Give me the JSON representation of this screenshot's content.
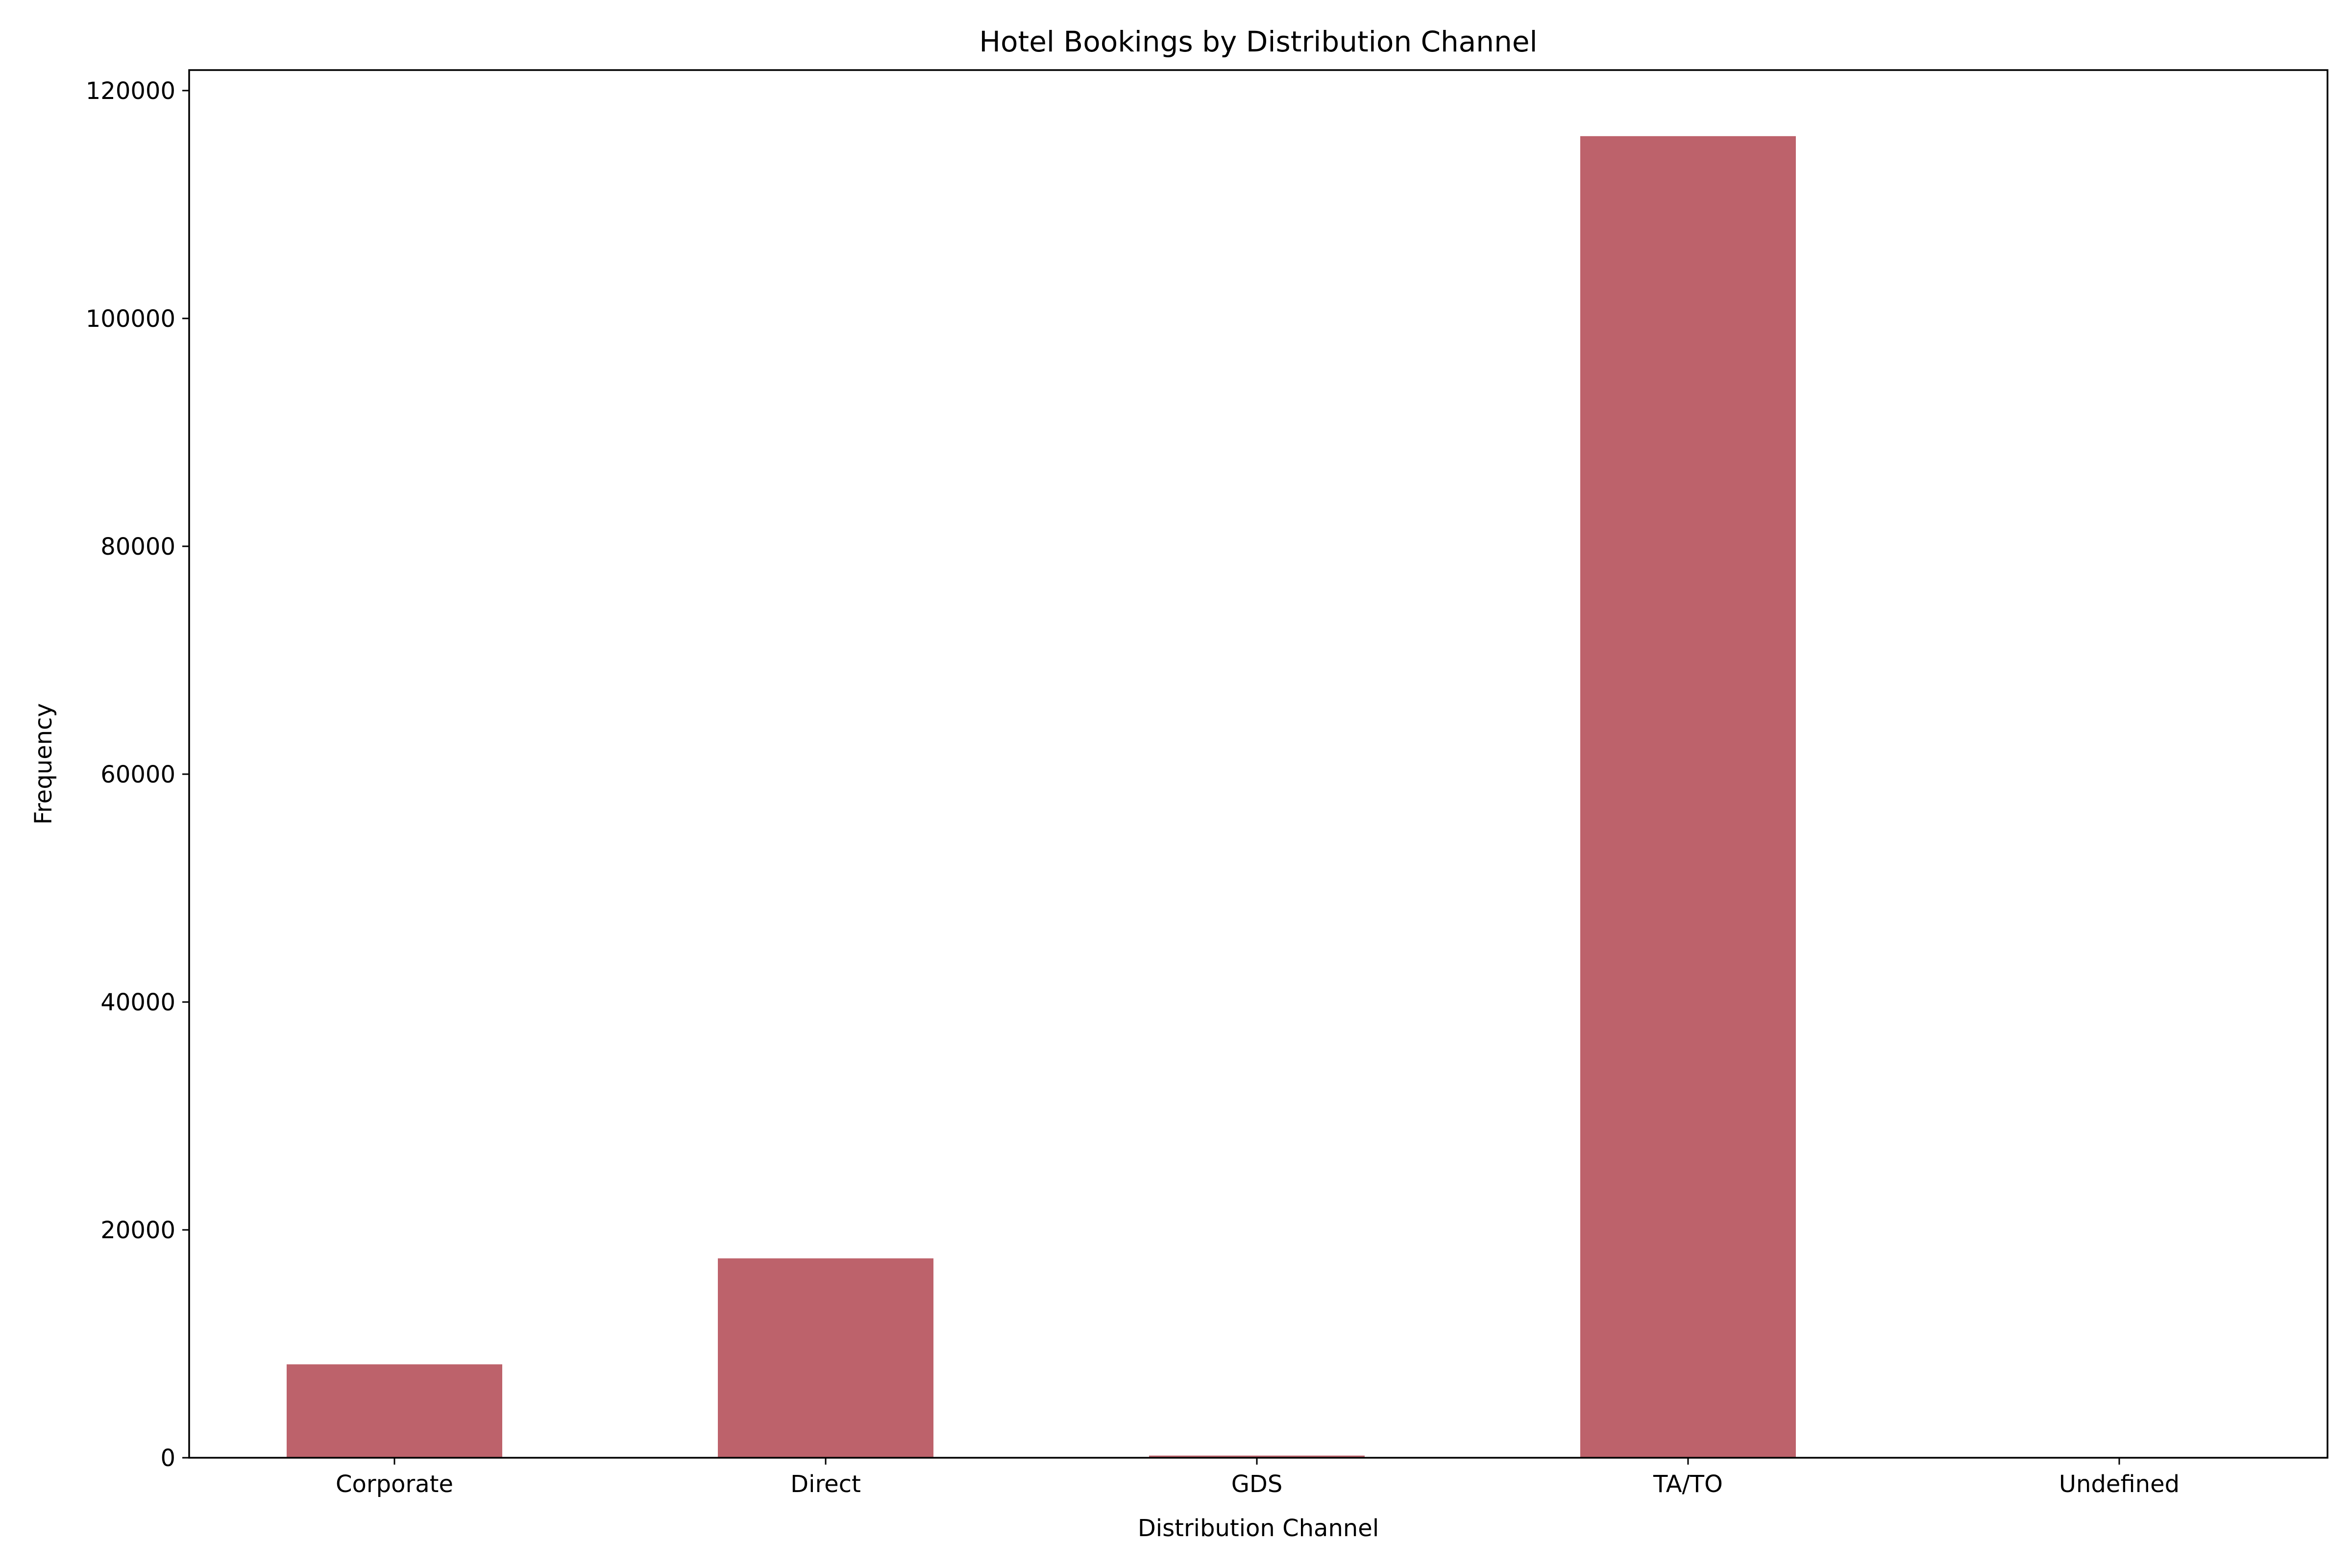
{
  "chart_data": {
    "type": "bar",
    "title": "Hotel Bookings by Distribution Channel",
    "xlabel": "Distribution Channel",
    "ylabel": "Frequency",
    "categories": [
      "Corporate",
      "Direct",
      "GDS",
      "TA/TO",
      "Undefined"
    ],
    "values": [
      8200,
      17500,
      190,
      116000,
      5
    ],
    "ylim": [
      0,
      122000
    ],
    "yticks": [
      0,
      20000,
      40000,
      60000,
      80000,
      100000,
      120000
    ],
    "ytick_labels": [
      "0",
      "20000",
      "40000",
      "60000",
      "80000",
      "100000",
      "120000"
    ],
    "grid": false,
    "legend": "none",
    "bar_color": "#bd626b"
  }
}
